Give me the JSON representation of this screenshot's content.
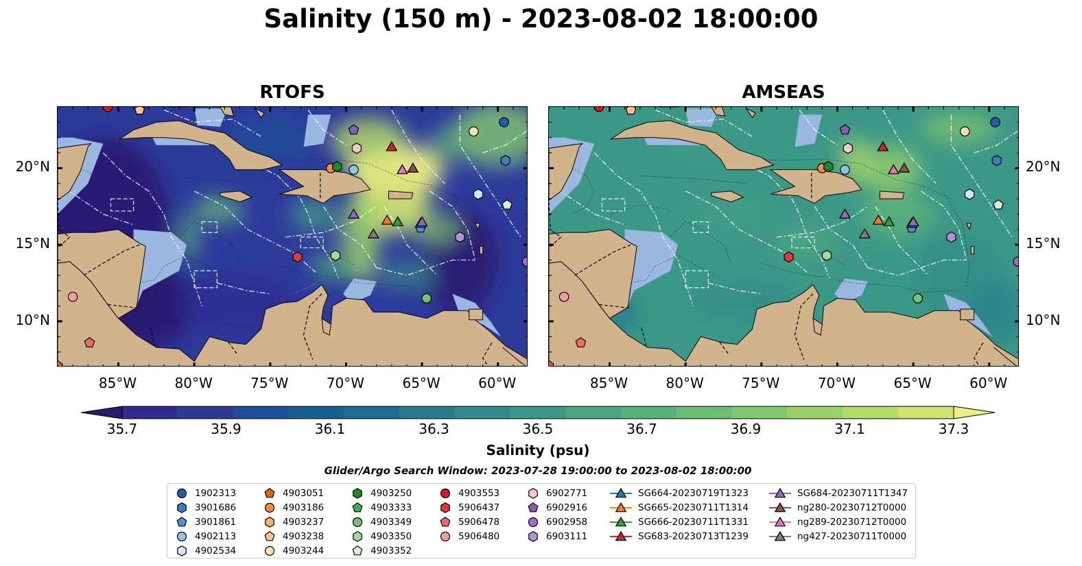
{
  "title": "Salinity (150 m) - 2023-08-02 18:00:00",
  "panels": [
    {
      "title": "RTOFS",
      "variant": "rtofs"
    },
    {
      "title": "AMSEAS",
      "variant": "amseas"
    }
  ],
  "axes": {
    "lon_ticks": [
      {
        "value": -85,
        "label": "85°W"
      },
      {
        "value": -80,
        "label": "80°W"
      },
      {
        "value": -75,
        "label": "75°W"
      },
      {
        "value": -70,
        "label": "70°W"
      },
      {
        "value": -65,
        "label": "65°W"
      },
      {
        "value": -60,
        "label": "60°W"
      }
    ],
    "lat_ticks": [
      {
        "value": 20,
        "label": "20°N"
      },
      {
        "value": 15,
        "label": "15°N"
      },
      {
        "value": 10,
        "label": "10°N"
      }
    ],
    "lon_range": [
      -89,
      -58
    ],
    "lat_range": [
      7,
      24
    ]
  },
  "colorbar": {
    "label": "Salinity (psu)",
    "range": [
      35.6,
      37.4
    ],
    "extend": "both",
    "ticks": [
      {
        "value": 35.7,
        "label": "35.7"
      },
      {
        "value": 35.9,
        "label": "35.9"
      },
      {
        "value": 36.1,
        "label": "36.1"
      },
      {
        "value": 36.3,
        "label": "36.3"
      },
      {
        "value": 36.5,
        "label": "36.5"
      },
      {
        "value": 36.7,
        "label": "36.7"
      },
      {
        "value": 36.9,
        "label": "36.9"
      },
      {
        "value": 37.1,
        "label": "37.1"
      },
      {
        "value": 37.3,
        "label": "37.3"
      }
    ],
    "colors": [
      "#2a1a6e",
      "#2f2a8e",
      "#2c3b9a",
      "#1f4f99",
      "#185f92",
      "#1c6e8e",
      "#267c8c",
      "#308a89",
      "#3c9886",
      "#4aa682",
      "#5ab27d",
      "#6cbe76",
      "#82c86e",
      "#9bd268",
      "#b6db68",
      "#d2e470",
      "#ecee85"
    ]
  },
  "colors": {
    "land": "#d2b48c",
    "shelf": "#9bb8e0",
    "contour": "#ffffff",
    "grid": "#ffffff"
  },
  "legend": {
    "title": "Glider/Argo Search Window: 2023-07-28 19:00:00 to 2023-08-02 18:00:00",
    "columns": [
      [
        {
          "label": "1902313",
          "marker": "circle",
          "color": "#1f5fa8"
        },
        {
          "label": "3901686",
          "marker": "hexagon",
          "color": "#3a7fc0"
        },
        {
          "label": "3901861",
          "marker": "pentagon",
          "color": "#4f90cf"
        },
        {
          "label": "4902113",
          "marker": "circle",
          "color": "#8fc3ea"
        },
        {
          "label": "4902534",
          "marker": "hexagon",
          "color": "#d2e8f8"
        }
      ],
      [
        {
          "label": "4903051",
          "marker": "pentagon",
          "color": "#e8610a"
        },
        {
          "label": "4903186",
          "marker": "circle",
          "color": "#fd8d3c"
        },
        {
          "label": "4903237",
          "marker": "hexagon",
          "color": "#fdae6b"
        },
        {
          "label": "4903238",
          "marker": "pentagon",
          "color": "#fdc48c"
        },
        {
          "label": "4903244",
          "marker": "circle",
          "color": "#fee0b6"
        }
      ],
      [
        {
          "label": "4903250",
          "marker": "hexagon",
          "color": "#1a8a2a"
        },
        {
          "label": "4903333",
          "marker": "pentagon",
          "color": "#41ab5d"
        },
        {
          "label": "4903349",
          "marker": "circle",
          "color": "#74c476"
        },
        {
          "label": "4903350",
          "marker": "hexagon",
          "color": "#a1d99b"
        },
        {
          "label": "4903352",
          "marker": "pentagon",
          "color": "#d4f0cc"
        }
      ],
      [
        {
          "label": "4903553",
          "marker": "circle",
          "color": "#d7191c"
        },
        {
          "label": "5906437",
          "marker": "hexagon",
          "color": "#e0393e"
        },
        {
          "label": "5906478",
          "marker": "pentagon",
          "color": "#f06a6a"
        },
        {
          "label": "5906480",
          "marker": "circle",
          "color": "#f4a0a0"
        }
      ],
      [
        {
          "label": "6902771",
          "marker": "hexagon",
          "color": "#f8c8c8"
        },
        {
          "label": "6902916",
          "marker": "pentagon",
          "color": "#8a5cb8"
        },
        {
          "label": "6902958",
          "marker": "circle",
          "color": "#9e6fc8"
        },
        {
          "label": "6903111",
          "marker": "hexagon",
          "color": "#b592d8"
        }
      ],
      [
        {
          "label": "SG664-20230719T1323",
          "marker": "triangle",
          "color": "#1f77b4",
          "line": true
        },
        {
          "label": "SG665-20230711T1314",
          "marker": "triangle",
          "color": "#ff7f0e",
          "line": true
        },
        {
          "label": "SG666-20230711T1331",
          "marker": "triangle",
          "color": "#2ca02c",
          "line": true
        },
        {
          "label": "SG683-20230713T1239",
          "marker": "triangle",
          "color": "#d62728",
          "line": true
        }
      ],
      [
        {
          "label": "SG684-20230711T1347",
          "marker": "triangle",
          "color": "#9467bd",
          "line": true
        },
        {
          "label": "ng280-20230712T0000",
          "marker": "triangle",
          "color": "#8c564b",
          "line": true
        },
        {
          "label": "ng289-20230712T0000",
          "marker": "triangle",
          "color": "#e377c2",
          "line": true
        },
        {
          "label": "ng427-20230711T0000",
          "marker": "triangle",
          "color": "#7f7f7f",
          "line": true
        }
      ]
    ]
  },
  "markers": [
    {
      "id": "1902313",
      "marker": "circle",
      "color": "#1f5fa8",
      "lon": -59.6,
      "lat": 23.0
    },
    {
      "id": "3901686",
      "marker": "hexagon",
      "color": "#3a7fc0",
      "lon": -59.5,
      "lat": 20.5
    },
    {
      "id": "3901861",
      "marker": "pentagon",
      "color": "#4f90cf",
      "lon": -65.1,
      "lat": 16.1
    },
    {
      "id": "4902113",
      "marker": "circle",
      "color": "#8fc3ea",
      "lon": -69.5,
      "lat": 19.9
    },
    {
      "id": "4902534",
      "marker": "hexagon",
      "color": "#d2e8f8",
      "lon": -61.3,
      "lat": 18.3
    },
    {
      "id": "4903051",
      "marker": "pentagon",
      "color": "#e8610a",
      "lon": -89.0,
      "lat": 7.1
    },
    {
      "id": "4903186",
      "marker": "circle",
      "color": "#fd8d3c",
      "lon": -71.0,
      "lat": 20.0
    },
    {
      "id": "4903238",
      "marker": "pentagon",
      "color": "#fdc48c",
      "lon": -83.6,
      "lat": 23.8
    },
    {
      "id": "4903244",
      "marker": "circle",
      "color": "#fee0b6",
      "lon": -61.6,
      "lat": 22.4
    },
    {
      "id": "4903250",
      "marker": "hexagon",
      "color": "#1a8a2a",
      "lon": -70.6,
      "lat": 20.1
    },
    {
      "id": "4903349",
      "marker": "circle",
      "color": "#74c476",
      "lon": -64.7,
      "lat": 11.5
    },
    {
      "id": "4903350",
      "marker": "hexagon",
      "color": "#a1d99b",
      "lon": -70.7,
      "lat": 14.3
    },
    {
      "id": "4903352",
      "marker": "pentagon",
      "color": "#d4f0cc",
      "lon": -59.4,
      "lat": 17.6
    },
    {
      "id": "4903553",
      "marker": "circle",
      "color": "#d7191c",
      "lon": -85.7,
      "lat": 24.0
    },
    {
      "id": "5906437",
      "marker": "hexagon",
      "color": "#e0393e",
      "lon": -73.2,
      "lat": 14.2
    },
    {
      "id": "5906478",
      "marker": "pentagon",
      "color": "#f06a6a",
      "lon": -86.9,
      "lat": 8.6
    },
    {
      "id": "5906480",
      "marker": "circle",
      "color": "#f4a0a0",
      "lon": -88.0,
      "lat": 11.6
    },
    {
      "id": "6902771",
      "marker": "hexagon",
      "color": "#f8c8c8",
      "lon": -69.3,
      "lat": 21.3
    },
    {
      "id": "6902916",
      "marker": "pentagon",
      "color": "#8a5cb8",
      "lon": -69.5,
      "lat": 22.5
    },
    {
      "id": "6902958",
      "marker": "circle",
      "color": "#9e6fc8",
      "lon": -58.1,
      "lat": 13.9
    },
    {
      "id": "6903111",
      "marker": "hexagon",
      "color": "#b592d8",
      "lon": -62.5,
      "lat": 15.5
    },
    {
      "id": "SG664-20230719T1323",
      "marker": "triangle",
      "color": "#1f77b4",
      "lon": -65.1,
      "lat": 16.4
    },
    {
      "id": "SG665-20230711T1314",
      "marker": "triangle",
      "color": "#ff7f0e",
      "lon": -67.3,
      "lat": 16.6
    },
    {
      "id": "SG666-20230711T1331",
      "marker": "triangle",
      "color": "#2ca02c",
      "lon": -66.6,
      "lat": 16.5
    },
    {
      "id": "SG683-20230713T1239",
      "marker": "triangle",
      "color": "#d62728",
      "lon": -67.0,
      "lat": 21.4
    },
    {
      "id": "SG684-20230711T1347",
      "marker": "triangle",
      "color": "#9467bd",
      "lon": -65.0,
      "lat": 16.5
    },
    {
      "id": "SG684-20230711T1347-b",
      "marker": "triangle",
      "color": "#9467bd",
      "lon": -69.5,
      "lat": 17.0
    },
    {
      "id": "ng280-20230712T0000",
      "marker": "triangle",
      "color": "#8c564b",
      "lon": -65.6,
      "lat": 20.0
    },
    {
      "id": "ng289-20230712T0000",
      "marker": "triangle",
      "color": "#e377c2",
      "lon": -66.3,
      "lat": 19.9
    },
    {
      "id": "ng427-20230711T0000",
      "marker": "triangle",
      "color": "#7f7f7f",
      "lon": -68.2,
      "lat": 15.7
    }
  ]
}
